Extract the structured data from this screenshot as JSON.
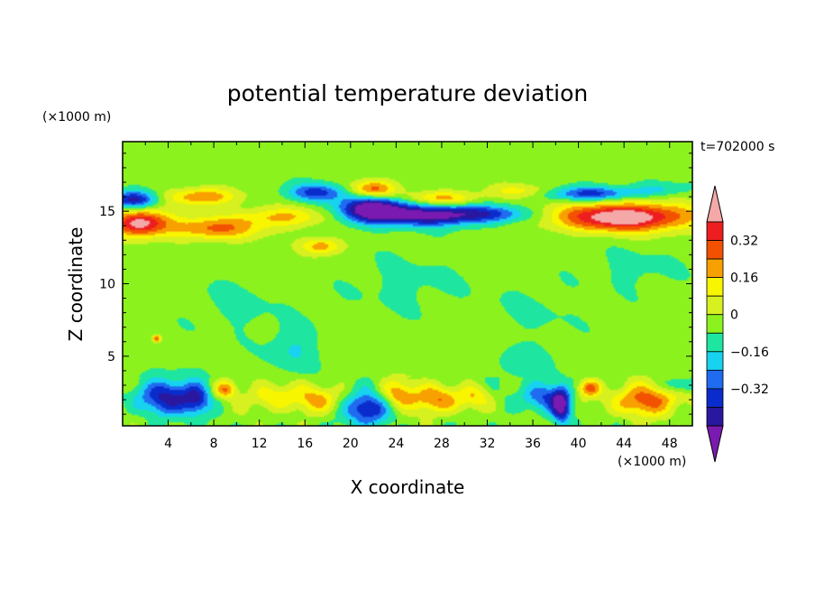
{
  "chart_data": {
    "type": "heatmap",
    "title": "potential temperature deviation",
    "xlabel": "X coordinate",
    "ylabel": "Z coordinate",
    "x_unit": "(×1000 m)",
    "y_unit": "(×1000 m)",
    "time_label": "t=702000 s",
    "xlim": [
      0,
      50
    ],
    "ylim": [
      0.2,
      19.8
    ],
    "x_ticks": [
      4,
      8,
      12,
      16,
      20,
      24,
      28,
      32,
      36,
      40,
      44,
      48
    ],
    "y_ticks": [
      5,
      10,
      15
    ],
    "grid": false,
    "colorbar": {
      "levels": [
        -0.48,
        -0.4,
        -0.32,
        -0.24,
        -0.16,
        -0.08,
        0,
        0.08,
        0.16,
        0.24,
        0.32,
        0.4,
        0.48
      ],
      "tick_labels": [
        "0.32",
        "0.16",
        "0",
        "−0.16",
        "−0.32"
      ],
      "tick_values": [
        0.32,
        0.16,
        0,
        -0.16,
        -0.32
      ],
      "colors": [
        "#7a1ab0",
        "#2a17a0",
        "#0b2ccc",
        "#1f6cf0",
        "#17d3f0",
        "#1ee6a0",
        "#8cf21e",
        "#d6f020",
        "#f7f500",
        "#f7a000",
        "#f25200",
        "#ee1e20",
        "#f5a8a8"
      ],
      "extend": "both"
    },
    "features": [
      {
        "x": 44,
        "z": 14.6,
        "rx": 6,
        "rz": 1.0,
        "v": 0.56
      },
      {
        "x": 1.5,
        "z": 14.2,
        "rx": 2.5,
        "rz": 0.9,
        "v": 0.5
      },
      {
        "x": 8,
        "z": 13.8,
        "rx": 4,
        "rz": 0.8,
        "v": 0.3
      },
      {
        "x": 14,
        "z": 14.6,
        "rx": 4,
        "rz": 0.7,
        "v": 0.22
      },
      {
        "x": 22,
        "z": 15.1,
        "rx": 3,
        "rz": 0.9,
        "v": -0.56
      },
      {
        "x": 27,
        "z": 14.7,
        "rx": 4,
        "rz": 0.7,
        "v": -0.42
      },
      {
        "x": 32,
        "z": 14.8,
        "rx": 4,
        "rz": 0.6,
        "v": -0.28
      },
      {
        "x": 1,
        "z": 15.8,
        "rx": 2,
        "rz": 0.6,
        "v": -0.4
      },
      {
        "x": 17,
        "z": 16.3,
        "rx": 2.5,
        "rz": 0.6,
        "v": -0.3
      },
      {
        "x": 41,
        "z": 16.2,
        "rx": 4,
        "rz": 0.5,
        "v": -0.32
      },
      {
        "x": 7,
        "z": 16.0,
        "rx": 3,
        "rz": 0.6,
        "v": 0.3
      },
      {
        "x": 22,
        "z": 16.5,
        "rx": 2,
        "rz": 0.6,
        "v": 0.34
      },
      {
        "x": 28,
        "z": 15.9,
        "rx": 3,
        "rz": 0.5,
        "v": 0.25
      },
      {
        "x": 35,
        "z": 16.4,
        "rx": 3,
        "rz": 0.5,
        "v": 0.16
      },
      {
        "x": 47,
        "z": 16.5,
        "rx": 2.5,
        "rz": 0.5,
        "v": -0.12
      },
      {
        "x": 17.5,
        "z": 12.6,
        "rx": 1.8,
        "rz": 0.6,
        "v": 0.26
      },
      {
        "x": 3,
        "z": 6.2,
        "rx": 0.3,
        "rz": 0.2,
        "v": 0.36
      },
      {
        "x": 4,
        "z": 2.2,
        "rx": 2.5,
        "rz": 1.2,
        "v": -0.38
      },
      {
        "x": 6.5,
        "z": 2.0,
        "rx": 1.2,
        "rz": 1.0,
        "v": -0.28
      },
      {
        "x": 9,
        "z": 2.7,
        "rx": 1.0,
        "rz": 0.6,
        "v": 0.3
      },
      {
        "x": 13,
        "z": 2.2,
        "rx": 2.0,
        "rz": 0.9,
        "v": 0.2
      },
      {
        "x": 17,
        "z": 2.0,
        "rx": 2.0,
        "rz": 1.0,
        "v": 0.24
      },
      {
        "x": 21.5,
        "z": 1.4,
        "rx": 2.0,
        "rz": 1.1,
        "v": -0.4
      },
      {
        "x": 24,
        "z": 2.3,
        "rx": 1.6,
        "rz": 1.0,
        "v": 0.28
      },
      {
        "x": 27.5,
        "z": 2.0,
        "rx": 2.0,
        "rz": 1.0,
        "v": 0.3
      },
      {
        "x": 31,
        "z": 2.2,
        "rx": 1.4,
        "rz": 0.8,
        "v": 0.18
      },
      {
        "x": 37,
        "z": 2.2,
        "rx": 2.0,
        "rz": 1.0,
        "v": -0.26
      },
      {
        "x": 38.5,
        "z": 1.6,
        "rx": 0.8,
        "rz": 1.2,
        "v": -0.42
      },
      {
        "x": 41,
        "z": 2.8,
        "rx": 1.0,
        "rz": 0.6,
        "v": 0.3
      },
      {
        "x": 46,
        "z": 2.0,
        "rx": 3.0,
        "rz": 1.1,
        "v": 0.34
      },
      {
        "x": 49,
        "z": 3.0,
        "rx": 1.5,
        "rz": 0.5,
        "v": -0.2
      },
      {
        "x": 10,
        "z": 8.5,
        "rx": 4,
        "rz": 2.0,
        "v": -0.05
      },
      {
        "x": 25,
        "z": 10.0,
        "rx": 5,
        "rz": 2.0,
        "v": -0.05
      },
      {
        "x": 36,
        "z": 8.0,
        "rx": 4,
        "rz": 2.0,
        "v": -0.04
      },
      {
        "x": 45,
        "z": 11.0,
        "rx": 4,
        "rz": 1.5,
        "v": -0.05
      },
      {
        "x": 15,
        "z": 5.5,
        "rx": 2.0,
        "rz": 1.5,
        "v": -0.12
      },
      {
        "x": 35,
        "z": 4.5,
        "rx": 2.0,
        "rz": 1.0,
        "v": -0.1
      }
    ]
  }
}
